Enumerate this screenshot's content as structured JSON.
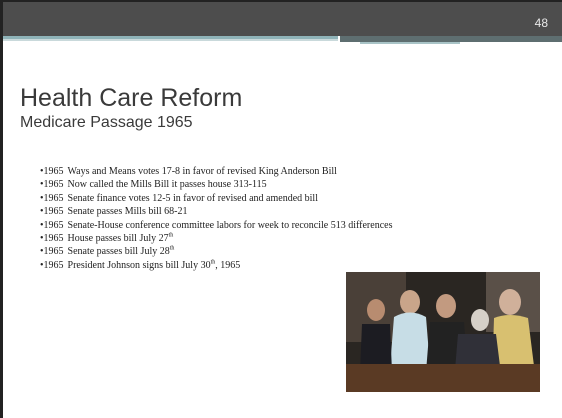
{
  "slide": {
    "number": "48",
    "title": "Health Care Reform",
    "subtitle": "Medicare Passage 1965",
    "bullets": [
      {
        "year": "1965",
        "segments": [
          {
            "text": "Ways and Means votes 17-8 in favor of revised King Anderson Bill"
          }
        ]
      },
      {
        "year": "1965",
        "segments": [
          {
            "text": "Now called the Mills Bill it passes house 313-115"
          }
        ]
      },
      {
        "year": "1965",
        "segments": [
          {
            "text": "Senate finance votes 12-5 in favor of revised and amended bill"
          }
        ]
      },
      {
        "year": "1965",
        "segments": [
          {
            "text": "Senate passes Mills bill 68-21"
          }
        ]
      },
      {
        "year": "1965",
        "segments": [
          {
            "text": "Senate-House conference committee labors for week to reconcile 513 differences"
          }
        ]
      },
      {
        "year": "1965",
        "segments": [
          {
            "text": "House passes bill July 27"
          },
          {
            "sup": "th"
          }
        ]
      },
      {
        "year": "1965",
        "segments": [
          {
            "text": "Senate passes bill July 28"
          },
          {
            "sup": "th"
          }
        ]
      },
      {
        "year": "1965",
        "segments": [
          {
            "text": "President Johnson signs bill July 30"
          },
          {
            "sup": "th"
          },
          {
            "text": ", 1965"
          }
        ]
      }
    ]
  }
}
